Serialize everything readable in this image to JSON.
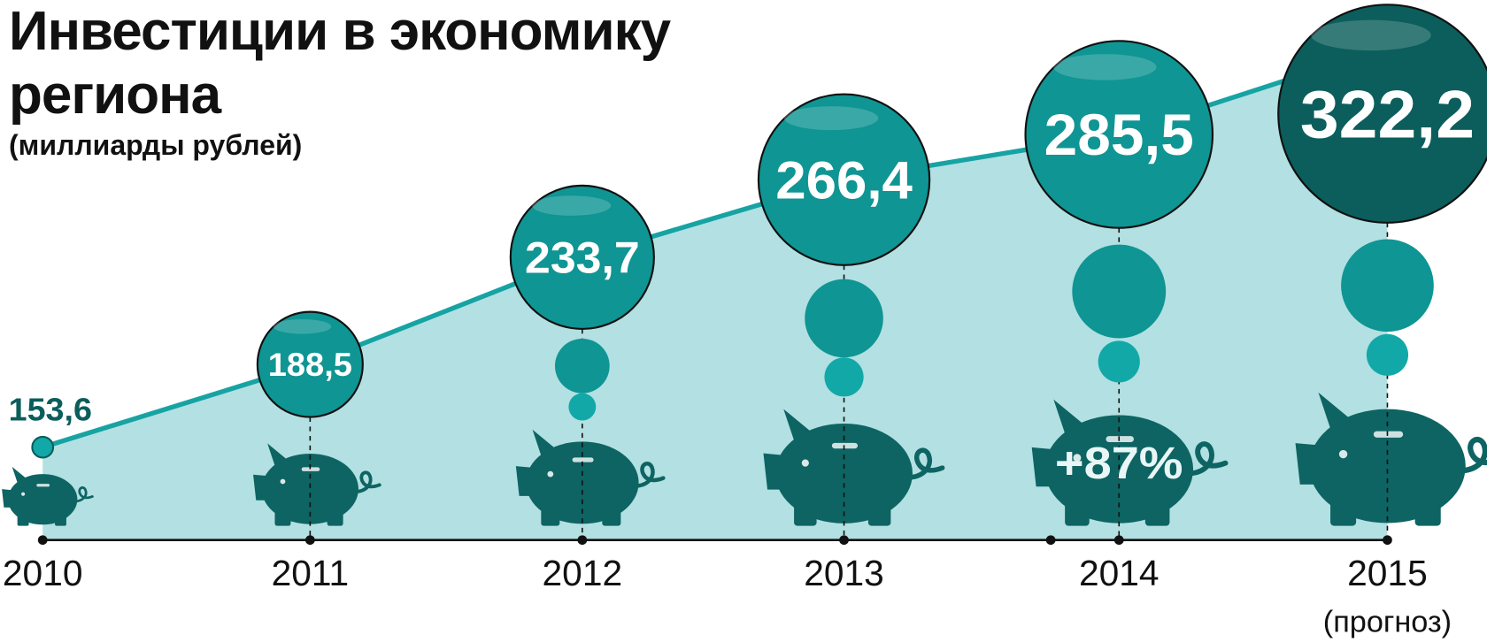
{
  "chart_data": {
    "type": "line",
    "title": "Инвестиции в экономику региона",
    "subtitle": "(миллиарды рублей)",
    "categories": [
      "2010",
      "2011",
      "2012",
      "2013",
      "2014",
      "2015"
    ],
    "values": [
      153.6,
      188.5,
      233.7,
      266.4,
      285.5,
      322.2
    ],
    "value_labels": [
      "153,6",
      "188,5",
      "233,7",
      "266,4",
      "285,5",
      "322,2"
    ],
    "annotations": {
      "growth": "+87%",
      "forecast": "(прогноз)"
    },
    "colors": {
      "area": "#b3e0e2",
      "line": "#17a3a3",
      "bubble": "#0f9593",
      "bubble_last": "#0b5e5c",
      "piggy": "#0d6463",
      "small_bubble": "#12a8a8"
    }
  }
}
